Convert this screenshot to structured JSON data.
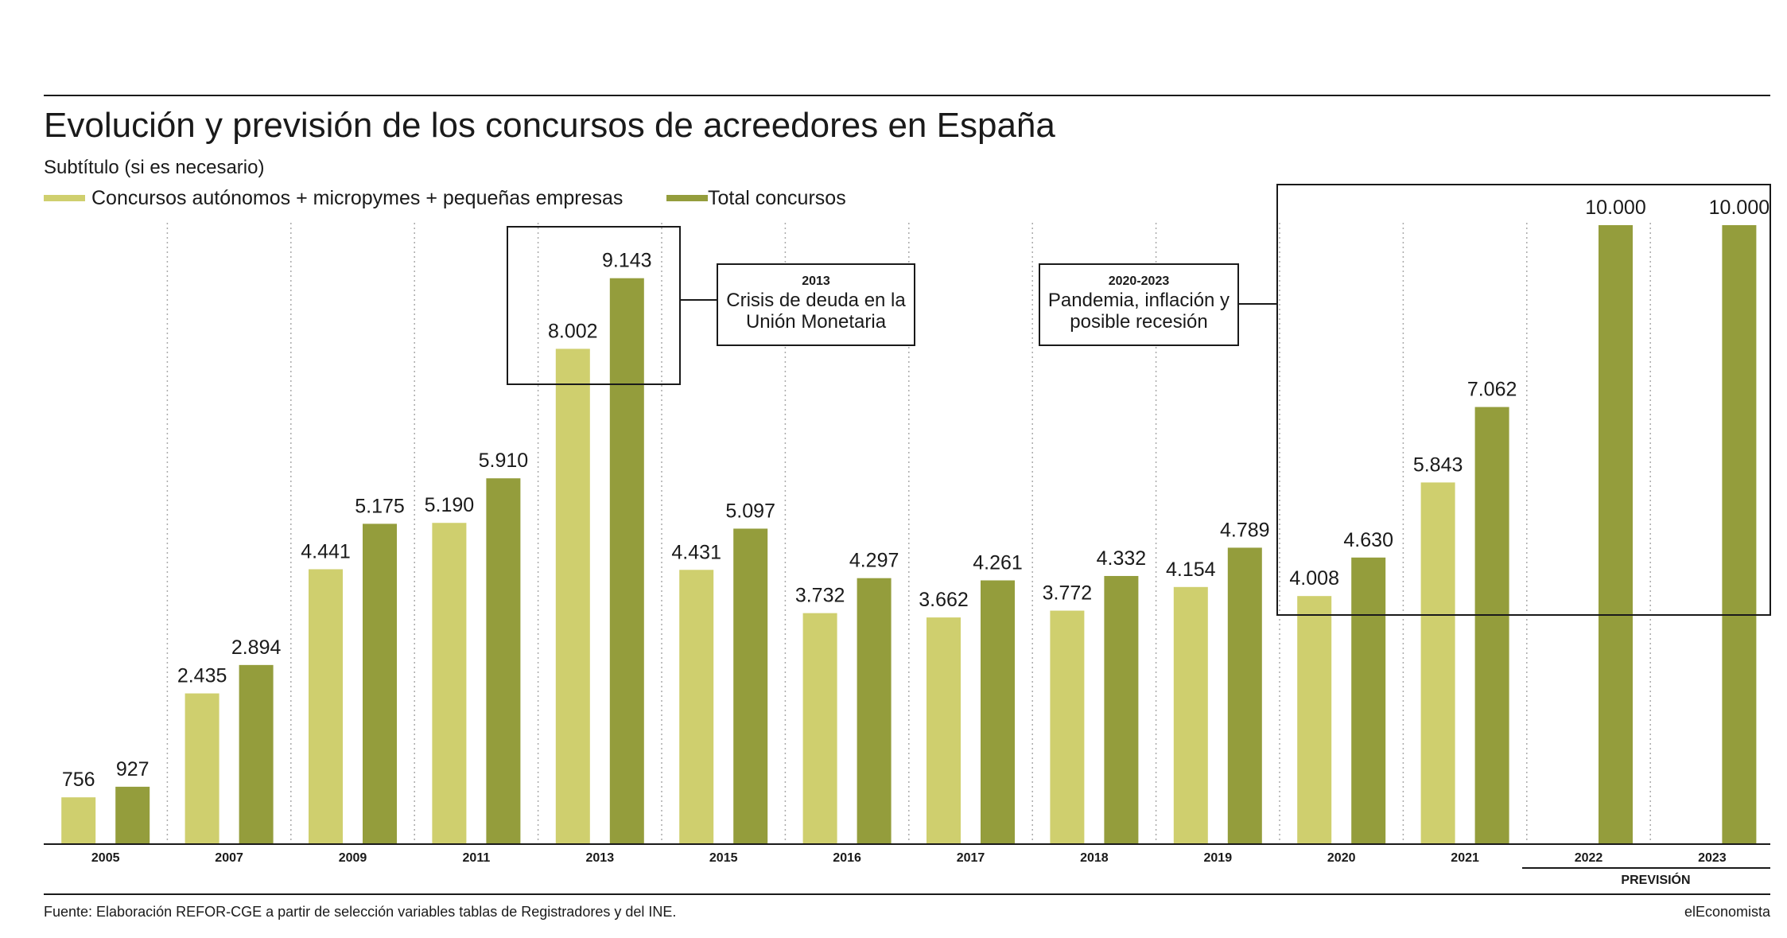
{
  "title": "Evolución y previsión de los concursos de acreedores en España",
  "subtitle": "Subtítulo (si es necesario)",
  "source": "Fuente: Elaboración REFOR-CGE a partir de selección variables tablas de Registradores y del INE.",
  "brand": "elEconomista",
  "forecast_label": "PREVISIÓN",
  "colors": {
    "light": "#cfcf6e",
    "dark": "#949d3c",
    "grid": "#aaaaaa",
    "text": "#1a1a1a"
  },
  "annotations": [
    {
      "year": "2013",
      "text_lines": [
        "Crisis de deuda en la",
        "Unión Monetaria"
      ]
    },
    {
      "year": "2020-2023",
      "text_lines": [
        "Pandemia, inflación y",
        "posible recesión"
      ]
    }
  ],
  "chart_data": {
    "type": "bar",
    "title": "Evolución y previsión de los concursos de acreedores en España",
    "subtitle": "Subtítulo (si es necesario)",
    "categories": [
      "2005",
      "2007",
      "2009",
      "2011",
      "2013",
      "2015",
      "2016",
      "2017",
      "2018",
      "2019",
      "2020",
      "2021",
      "2022",
      "2023"
    ],
    "series": [
      {
        "name": "Concursos autónomos + micropymes + pequeñas empresas",
        "color": "#cfcf6e",
        "values": [
          756,
          2435,
          4441,
          5190,
          8002,
          4431,
          3732,
          3662,
          3772,
          4154,
          4008,
          5843,
          null,
          null
        ],
        "labels": [
          "756",
          "2.435",
          "4.441",
          "5.190",
          "8.002",
          "4.431",
          "3.732",
          "3.662",
          "3.772",
          "4.154",
          "4.008",
          "5.843",
          "",
          ""
        ]
      },
      {
        "name": "Total concursos",
        "color": "#949d3c",
        "values": [
          927,
          2894,
          5175,
          5910,
          9143,
          5097,
          4297,
          4261,
          4332,
          4789,
          4630,
          7062,
          10000,
          10000
        ],
        "labels": [
          "927",
          "2.894",
          "5.175",
          "5.910",
          "9.143",
          "5.097",
          "4.297",
          "4.261",
          "4.332",
          "4.789",
          "4.630",
          "7.062",
          "10.000",
          "10.000"
        ]
      }
    ],
    "forecast_categories": [
      "2022",
      "2023"
    ],
    "ylim": [
      0,
      10000
    ],
    "xlabel": "",
    "ylabel": "",
    "grid": false,
    "legend": "top-left"
  }
}
